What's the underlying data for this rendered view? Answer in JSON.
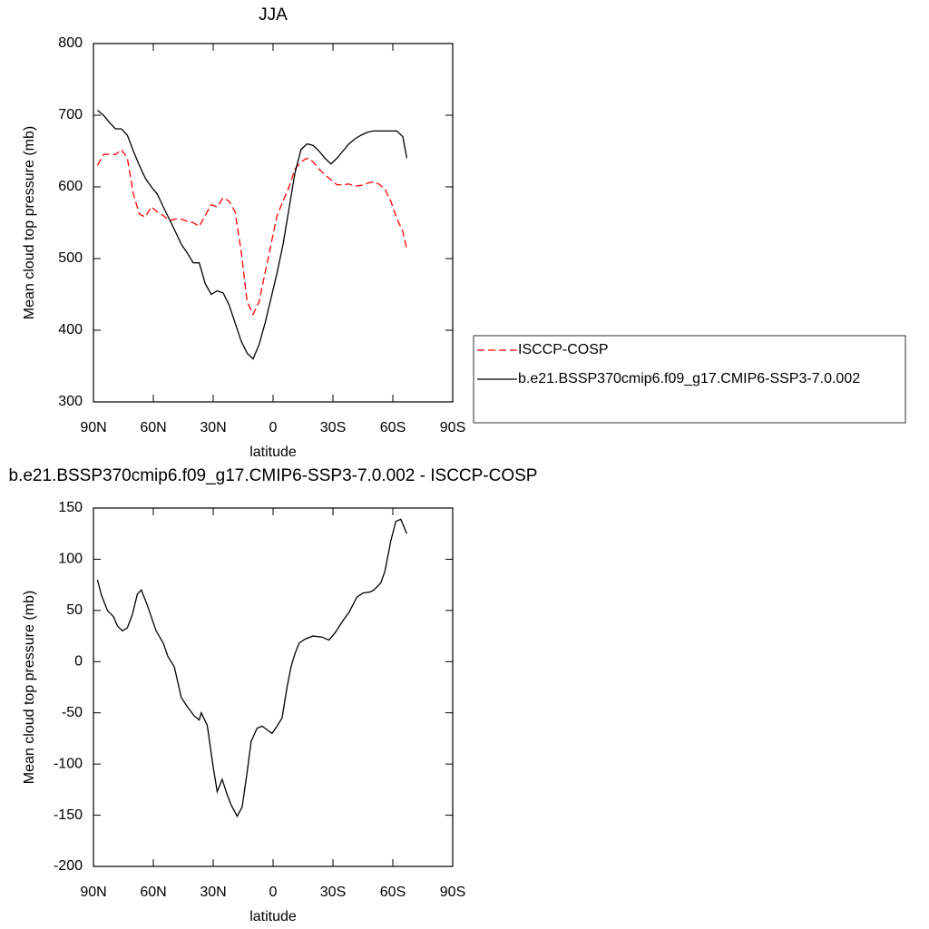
{
  "chart_data": [
    {
      "type": "line",
      "title": "JJA",
      "xlabel": "latitude",
      "ylabel": "Mean cloud top pressure (mb)",
      "x": [
        88,
        85,
        82,
        79,
        76,
        73,
        70,
        67,
        64,
        61,
        58,
        55,
        52,
        49,
        46,
        43,
        40,
        37,
        34,
        31,
        28,
        25,
        22,
        19,
        16,
        13,
        10,
        7,
        4,
        1,
        -2,
        -5,
        -8,
        -11,
        -14,
        -17,
        -20,
        -23,
        -26,
        -29,
        -32,
        -35,
        -38,
        -41,
        -44,
        -47,
        -50,
        -53,
        -56,
        -59,
        -62,
        -65,
        -67
      ],
      "series": [
        {
          "name": "ISCCP-COSP",
          "color": "#ff0000",
          "line_style": "dashed",
          "values": [
            630,
            645,
            646,
            645,
            652,
            640,
            590,
            562,
            558,
            572,
            565,
            560,
            553,
            555,
            555,
            552,
            550,
            545,
            560,
            575,
            572,
            585,
            580,
            565,
            510,
            440,
            422,
            440,
            480,
            520,
            560,
            580,
            600,
            625,
            635,
            640,
            635,
            625,
            617,
            610,
            603,
            603,
            604,
            601,
            602,
            605,
            607,
            604,
            597,
            580,
            556,
            538,
            513
          ]
        },
        {
          "name": "b.e21.BSSP370cmip6.f09_g17.CMIP6-SSP3-7.0.002",
          "color": "#000000",
          "line_style": "solid",
          "values": [
            707,
            700,
            690,
            681,
            681,
            672,
            650,
            630,
            612,
            600,
            590,
            572,
            555,
            538,
            520,
            508,
            494,
            494,
            465,
            450,
            455,
            452,
            435,
            410,
            385,
            368,
            360,
            380,
            410,
            445,
            480,
            520,
            570,
            620,
            652,
            660,
            658,
            650,
            640,
            632,
            640,
            650,
            660,
            667,
            672,
            676,
            678,
            678,
            678,
            678,
            678,
            670,
            640
          ]
        }
      ],
      "xlim": [
        90,
        -90
      ],
      "xticks": [
        {
          "value": 90,
          "label": "90N"
        },
        {
          "value": 60,
          "label": "60N"
        },
        {
          "value": 30,
          "label": "30N"
        },
        0,
        {
          "value": -30,
          "label": "30S"
        },
        {
          "value": -60,
          "label": "60S"
        },
        {
          "value": -90,
          "label": "90S"
        }
      ],
      "ylim": [
        300,
        800
      ],
      "yticks": [
        300,
        400,
        500,
        600,
        700,
        800
      ],
      "legend": "right"
    },
    {
      "type": "line",
      "title": "b.e21.BSSP370cmip6.f09_g17.CMIP6-SSP3-7.0.002 - ISCCP-COSP",
      "xlabel": "latitude",
      "ylabel": "Mean cloud top pressure (mb)",
      "x": [
        88,
        86,
        83,
        80,
        78,
        75.5,
        73,
        70.5,
        68,
        66,
        63,
        58.6,
        55,
        52.7,
        49.5,
        46,
        43,
        39.5,
        37,
        36,
        33,
        30,
        28,
        25.5,
        23,
        21,
        18,
        15.5,
        13,
        11,
        8,
        5.5,
        2,
        0.5,
        -2,
        -4.5,
        -7,
        -9,
        -11,
        -13,
        -16,
        -20,
        -24.5,
        -28,
        -31,
        -35,
        -38,
        -42,
        -45,
        -48.6,
        -50.5,
        -54,
        -56,
        -59,
        -61.5,
        -64,
        -67
      ],
      "series": [
        {
          "color": "#000000",
          "line_style": "solid",
          "values": [
            80,
            65,
            50,
            44,
            35,
            30,
            33,
            46,
            66,
            70,
            55,
            30,
            18,
            5,
            -5,
            -35,
            -44,
            -53,
            -57,
            -50,
            -62,
            -103,
            -127,
            -115,
            -130,
            -140,
            -151,
            -142,
            -108,
            -78,
            -65,
            -63,
            -68,
            -70,
            -63,
            -55,
            -25,
            -5,
            8,
            18,
            22,
            25,
            24,
            21,
            28,
            40,
            48,
            63,
            67,
            68,
            70,
            77,
            88,
            118,
            137,
            139,
            125
          ]
        }
      ],
      "xlim": [
        90,
        -90
      ],
      "xticks": [
        {
          "value": 90,
          "label": "90N"
        },
        {
          "value": 60,
          "label": "60N"
        },
        {
          "value": 30,
          "label": "30N"
        },
        0,
        {
          "value": -30,
          "label": "30S"
        },
        {
          "value": -60,
          "label": "60S"
        },
        {
          "value": -90,
          "label": "90S"
        }
      ],
      "ylim": [
        -200,
        150
      ],
      "yticks": [
        -200,
        -150,
        -100,
        -50,
        0,
        50,
        100,
        150
      ]
    }
  ]
}
